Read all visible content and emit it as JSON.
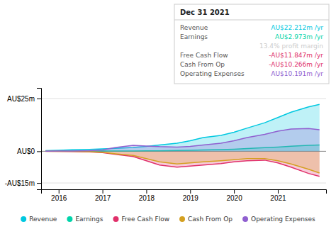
{
  "chart_data": {
    "type": "area",
    "x": [
      2015.7,
      2016.0,
      2016.3,
      2016.7,
      2017.0,
      2017.3,
      2017.7,
      2018.0,
      2018.3,
      2018.7,
      2019.0,
      2019.3,
      2019.7,
      2020.0,
      2020.3,
      2020.7,
      2021.0,
      2021.3,
      2021.7,
      2021.95
    ],
    "series": [
      {
        "name": "Revenue",
        "color": "#00c8e0",
        "values": [
          0.3,
          0.5,
          0.7,
          0.9,
          1.1,
          1.4,
          1.8,
          2.3,
          3.0,
          3.8,
          5.0,
          6.5,
          7.5,
          9.0,
          11.0,
          13.5,
          16.0,
          18.5,
          21.0,
          22.2
        ]
      },
      {
        "name": "Earnings",
        "color": "#00d4aa",
        "values": [
          0.05,
          0.05,
          0.06,
          0.08,
          0.1,
          0.12,
          0.15,
          0.2,
          0.25,
          0.35,
          0.5,
          0.65,
          0.8,
          1.0,
          1.3,
          1.7,
          2.0,
          2.4,
          2.8,
          2.97
        ]
      },
      {
        "name": "Free Cash Flow",
        "color": "#e0306a",
        "values": [
          0.0,
          -0.05,
          -0.1,
          -0.3,
          -0.6,
          -1.5,
          -2.5,
          -4.5,
          -6.5,
          -7.5,
          -7.0,
          -6.5,
          -5.8,
          -5.0,
          -4.5,
          -4.2,
          -5.5,
          -7.5,
          -10.5,
          -11.85
        ]
      },
      {
        "name": "Cash From Op",
        "color": "#d4a020",
        "values": [
          0.0,
          -0.03,
          -0.08,
          -0.2,
          -0.5,
          -1.2,
          -2.0,
          -3.5,
          -5.0,
          -6.0,
          -5.5,
          -5.0,
          -4.5,
          -4.0,
          -3.5,
          -3.5,
          -4.5,
          -6.0,
          -8.5,
          -10.27
        ]
      },
      {
        "name": "Operating Expenses",
        "color": "#9060d0",
        "values": [
          0.05,
          0.1,
          0.15,
          0.3,
          0.6,
          1.8,
          2.8,
          2.5,
          2.2,
          2.0,
          2.3,
          3.0,
          3.8,
          5.0,
          6.5,
          8.0,
          9.5,
          10.5,
          10.8,
          10.19
        ]
      }
    ],
    "xlim": [
      2015.6,
      2022.1
    ],
    "xticks": [
      2016,
      2017,
      2018,
      2019,
      2020,
      2021
    ],
    "ylim": [
      -18,
      30
    ],
    "yticks": [
      {
        "value": -15,
        "label": "-AU$15m"
      },
      {
        "value": 0,
        "label": "AU$0"
      },
      {
        "value": 25,
        "label": "AU$25m"
      }
    ],
    "grid": true,
    "legend": "bottom",
    "annotations": [
      {
        "title": "Dec 31 2021",
        "rows": [
          {
            "label": "Revenue",
            "text": "AU$22.212m /yr",
            "color": "#00c8e0"
          },
          {
            "label": "Earnings",
            "text": "AU$2.973m /yr",
            "color": "#00d4aa"
          },
          {
            "text": "13.4% profit margin",
            "color": "#cccccc"
          },
          {
            "label": "Free Cash Flow",
            "text": "-AU$11.847m /yr",
            "color": "#e0306a"
          },
          {
            "label": "Cash From Op",
            "text": "-AU$10.266m /yr",
            "color": "#e0306a"
          },
          {
            "label": "Operating Expenses",
            "text": "AU$10.191m /yr",
            "color": "#9060d0"
          }
        ]
      }
    ]
  }
}
